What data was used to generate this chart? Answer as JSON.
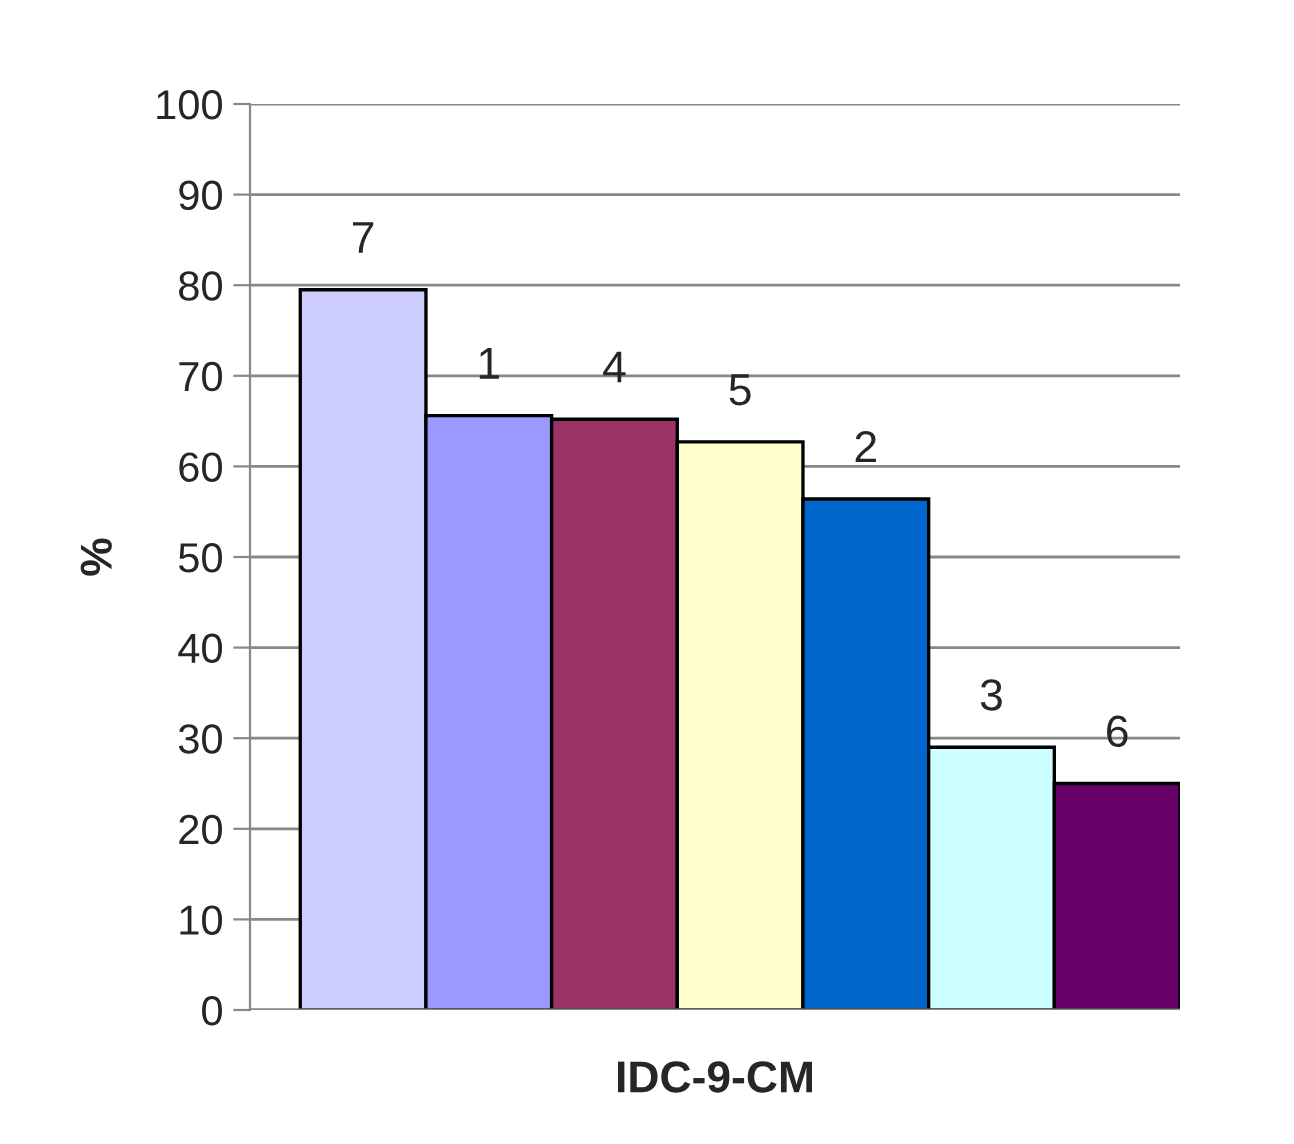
{
  "chart_data": {
    "type": "bar",
    "xlabel": "IDC-9-CM",
    "ylabel": "%",
    "categories": [
      "7",
      "1",
      "4",
      "5",
      "2",
      "3",
      "6"
    ],
    "values": [
      79.5,
      65.6,
      65.2,
      62.7,
      56.4,
      29,
      25
    ],
    "colors": [
      "#ccccff",
      "#9999ff",
      "#993366",
      "#ffffcc",
      "#0066cc",
      "#ccffff",
      "#660066"
    ],
    "ylim": [
      0,
      100
    ],
    "yticks": [
      0,
      10,
      20,
      30,
      40,
      50,
      60,
      70,
      80,
      90,
      100
    ],
    "grid": "y"
  }
}
